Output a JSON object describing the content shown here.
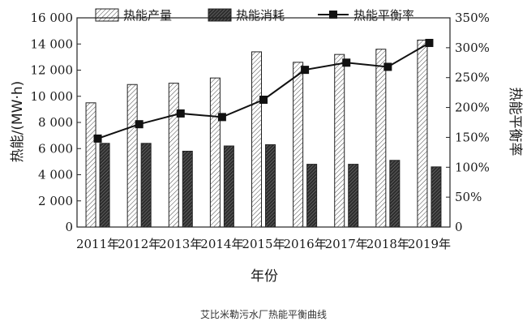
{
  "chart_data": {
    "type": "bar",
    "categories": [
      "2011年",
      "2012年",
      "2013年",
      "2014年",
      "2015年",
      "2016年",
      "2017年",
      "2018年",
      "2019年"
    ],
    "series": [
      {
        "name": "热能产量",
        "kind": "bar",
        "axis": "left",
        "pattern": "light-hatch",
        "values": [
          9500,
          10900,
          11000,
          11400,
          13400,
          12600,
          13200,
          13600,
          14300
        ]
      },
      {
        "name": "热能消耗",
        "kind": "bar",
        "axis": "left",
        "pattern": "dark-hatch",
        "values": [
          6400,
          6400,
          5800,
          6200,
          6300,
          4800,
          4800,
          5100,
          4600
        ]
      },
      {
        "name": "热能平衡率",
        "kind": "line",
        "axis": "right",
        "marker": "square",
        "values": [
          148,
          172,
          190,
          184,
          213,
          263,
          275,
          268,
          308
        ]
      }
    ],
    "xlabel": "年份",
    "ylabel": "热能/(MW·h)",
    "y2label": "热能平衡率",
    "ylim": [
      0,
      16000
    ],
    "y2lim": [
      0,
      350
    ],
    "yticks": [
      "0",
      "2 000",
      "4 000",
      "6 000",
      "8 000",
      "10 000",
      "12 000",
      "14 000",
      "16 000"
    ],
    "y2ticks": [
      "0",
      "50%",
      "100%",
      "150%",
      "200%",
      "250%",
      "300%",
      "350%"
    ],
    "legend_position": "top",
    "grid": false
  },
  "caption": "艾比米勒污水厂热能平衡曲线"
}
